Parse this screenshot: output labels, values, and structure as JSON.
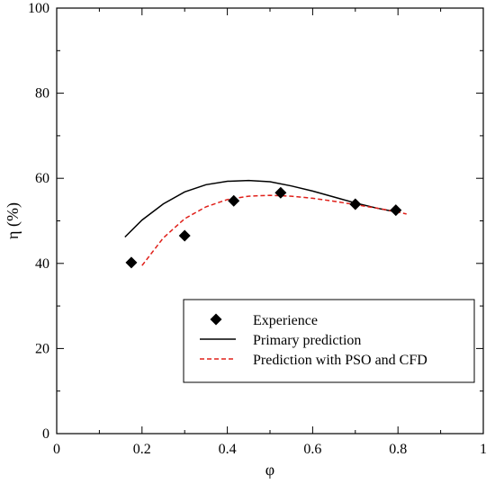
{
  "chart_data": {
    "type": "scatter",
    "xlabel": "φ",
    "ylabel": "η (%)",
    "xlim": [
      0,
      1
    ],
    "ylim": [
      0,
      100
    ],
    "xticks": [
      "0",
      "0.2",
      "0.4",
      "0.6",
      "0.8",
      "1"
    ],
    "yticks": [
      "0",
      "20",
      "40",
      "60",
      "80",
      "100"
    ],
    "grid": false,
    "legend_position": "bottom-right",
    "series": [
      {
        "name": "Experience",
        "kind": "markers",
        "marker": "diamond",
        "color": "#000000",
        "x": [
          0.175,
          0.3,
          0.415,
          0.525,
          0.7,
          0.795
        ],
        "y": [
          40.2,
          46.5,
          54.7,
          56.6,
          53.9,
          52.5
        ]
      },
      {
        "name": "Primary prediction",
        "kind": "line",
        "dash": "solid",
        "color": "#000000",
        "x": [
          0.16,
          0.2,
          0.25,
          0.3,
          0.35,
          0.4,
          0.45,
          0.5,
          0.55,
          0.6,
          0.65,
          0.7,
          0.75,
          0.8
        ],
        "y": [
          46.2,
          50.2,
          54.0,
          56.8,
          58.5,
          59.3,
          59.5,
          59.2,
          58.2,
          57.0,
          55.6,
          54.2,
          53.0,
          52.0
        ]
      },
      {
        "name": "Prediction with PSO and CFD",
        "kind": "line",
        "dash": "dashed",
        "color": "#e0201a",
        "x": [
          0.2,
          0.25,
          0.3,
          0.35,
          0.4,
          0.45,
          0.5,
          0.55,
          0.6,
          0.65,
          0.7,
          0.75,
          0.8,
          0.82
        ],
        "y": [
          39.5,
          46.0,
          50.5,
          53.3,
          55.0,
          55.8,
          56.0,
          55.8,
          55.3,
          54.6,
          53.8,
          53.0,
          52.1,
          51.6
        ]
      }
    ]
  }
}
